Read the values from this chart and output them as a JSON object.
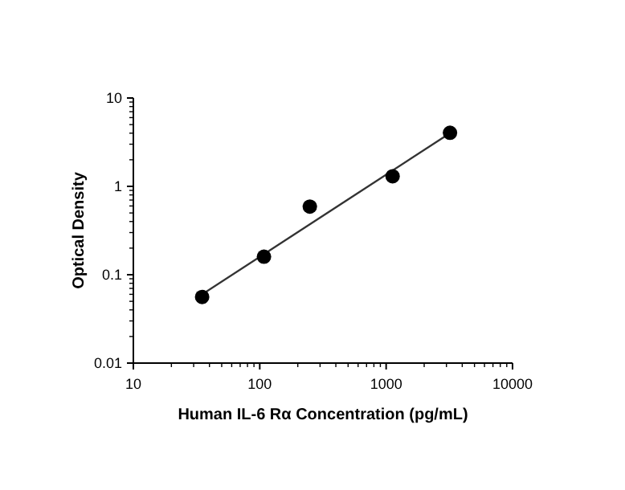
{
  "chart_data": {
    "type": "scatter",
    "xlabel": "Human IL-6 Rα Concentration (pg/mL)",
    "ylabel": "Optical Density",
    "log": "xy",
    "grid": false,
    "xlim": [
      10,
      10000
    ],
    "xticks": [
      10,
      100,
      1000,
      10000
    ],
    "ylim": [
      0.01,
      10
    ],
    "yticks": [
      0.01,
      0.1,
      1,
      10
    ],
    "series": [
      {
        "marker": "circle",
        "color": "#000000",
        "x": [
          35,
          108,
          249,
          1125,
          3200
        ],
        "values": [
          0.056,
          0.16,
          0.59,
          1.3,
          4.04
        ]
      },
      {
        "type": "line",
        "color": "#333333",
        "x": [
          35,
          3200
        ],
        "values": [
          0.06,
          4.0
        ]
      }
    ]
  }
}
